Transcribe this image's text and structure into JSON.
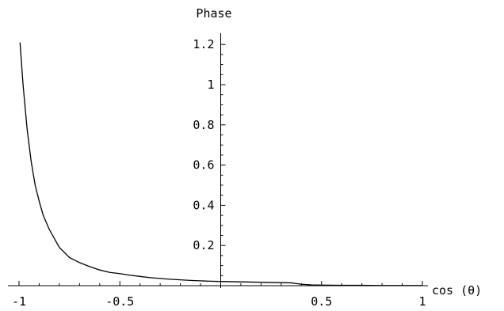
{
  "chart_data": {
    "type": "line",
    "title": "",
    "xlabel": "cos (θ)",
    "ylabel": "Phase",
    "xlim": [
      -1,
      1
    ],
    "ylim": [
      0,
      1.22
    ],
    "x_major_ticks": [
      -1,
      -0.5,
      0.5,
      1
    ],
    "x_tick_labels": [
      "-1",
      "-0.5",
      "0.5",
      "1"
    ],
    "y_major_ticks": [
      0.2,
      0.4,
      0.6,
      0.8,
      1,
      1.2
    ],
    "y_tick_labels": [
      "0.2",
      "0.4",
      "0.6",
      "0.8",
      "1",
      "1.2"
    ],
    "x_minor_step": 0.1,
    "y_minor_step": 0.05,
    "grid": false,
    "legend": "none",
    "series": [
      {
        "color": "#000000",
        "x": [
          -0.995,
          -0.98,
          -0.96,
          -0.94,
          -0.92,
          -0.9,
          -0.88,
          -0.85,
          -0.8,
          -0.75,
          -0.7,
          -0.65,
          -0.6,
          -0.55,
          -0.5,
          -0.45,
          -0.4,
          -0.35,
          -0.3,
          -0.25,
          -0.2,
          -0.15,
          -0.1,
          -0.05,
          0.0,
          0.05,
          0.1,
          0.15,
          0.2,
          0.25,
          0.3,
          0.35,
          0.4,
          0.45,
          0.5,
          0.6,
          0.7,
          0.8,
          0.9,
          1.0
        ],
        "y": [
          1.21,
          1.0,
          0.78,
          0.62,
          0.5,
          0.42,
          0.35,
          0.28,
          0.19,
          0.14,
          0.115,
          0.095,
          0.078,
          0.066,
          0.06,
          0.052,
          0.046,
          0.04,
          0.036,
          0.032,
          0.029,
          0.026,
          0.024,
          0.022,
          0.021,
          0.02,
          0.019,
          0.018,
          0.017,
          0.016,
          0.015,
          0.014,
          0.007,
          0.004,
          0.003,
          0.002,
          0.002,
          0.001,
          0.001,
          0.001
        ]
      }
    ]
  }
}
